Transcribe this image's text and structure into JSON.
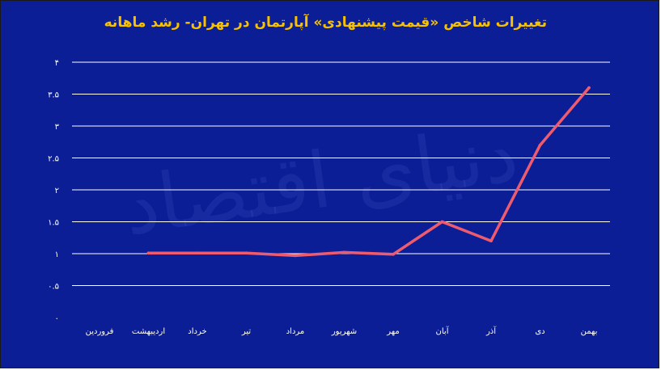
{
  "title": "تغییرات شاخص «قیمت پیشنهادی» آپارتمان در تهران- رشد ماهانه",
  "colors": {
    "background": "#0c1e96",
    "title": "#f5c100",
    "line": "#ef5b6e",
    "grid": "#ffffff",
    "text": "#ffffff"
  },
  "watermark": "دنیای اقتصاد",
  "chart_data": {
    "type": "line",
    "title": "تغییرات شاخص «قیمت پیشنهادی» آپارتمان در تهران- رشد ماهانه",
    "xlabel": "",
    "ylabel": "",
    "categories": [
      "فروردین",
      "اردیبهشت",
      "خرداد",
      "تیر",
      "مرداد",
      "شهریور",
      "مهر",
      "آبان",
      "آذر",
      "دی",
      "بهمن"
    ],
    "series": [
      {
        "values": [
          null,
          1.01,
          1.01,
          1.01,
          0.97,
          1.02,
          0.99,
          1.5,
          1.2,
          2.7,
          3.6
        ]
      }
    ],
    "ylim": [
      0,
      4
    ],
    "yticks": [
      {
        "value": 0,
        "label": "۰"
      },
      {
        "value": 0.5,
        "label": "۰.۵"
      },
      {
        "value": 1,
        "label": "۱"
      },
      {
        "value": 1.5,
        "label": "۱.۵"
      },
      {
        "value": 2,
        "label": "۲"
      },
      {
        "value": 2.5,
        "label": "۲.۵"
      },
      {
        "value": 3,
        "label": "۳"
      },
      {
        "value": 3.5,
        "label": "۳.۵"
      },
      {
        "value": 4,
        "label": "۴"
      }
    ],
    "grid": true,
    "legend": "none"
  }
}
